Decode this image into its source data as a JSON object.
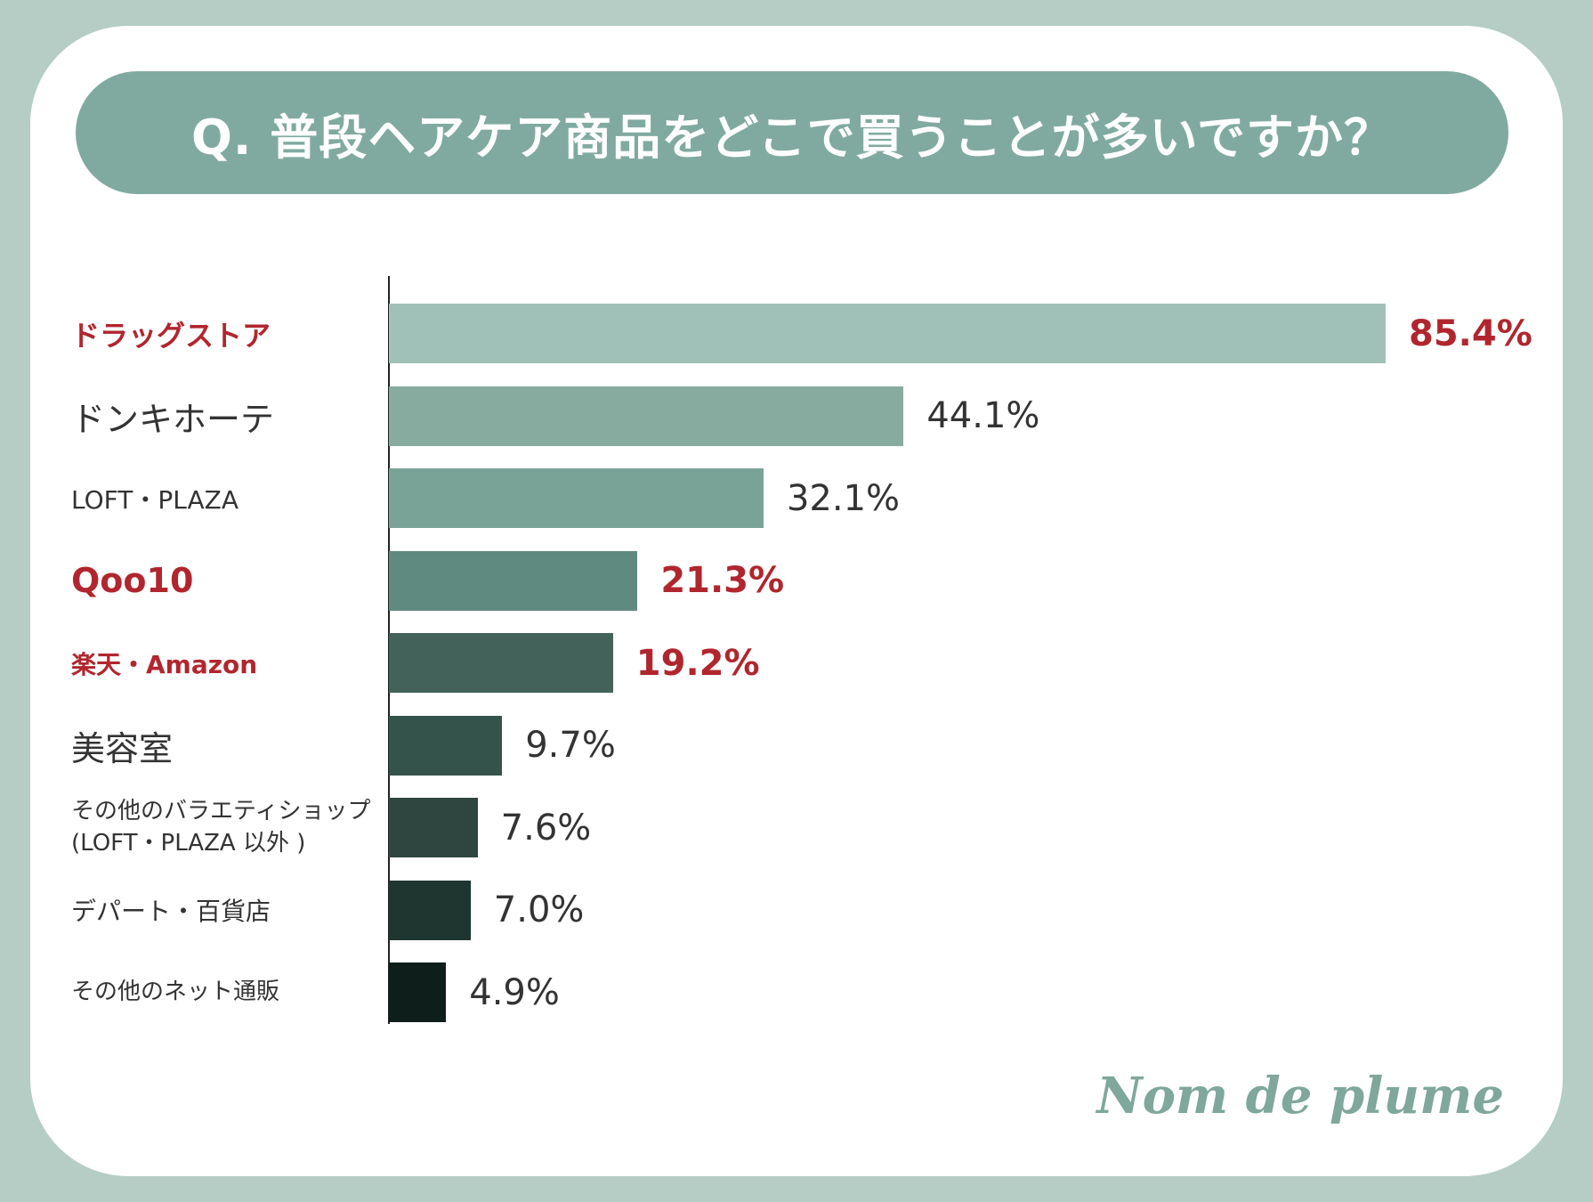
{
  "chart_data": {
    "type": "bar",
    "orientation": "horizontal",
    "title": "Q. 普段ヘアケア商品をどこで買うことが多いですか？",
    "xlim": [
      0,
      85.4
    ],
    "grid": false,
    "categories": [
      "ドラッグストア",
      "ドンキホーテ",
      "LOFT・PLAZA",
      "Qoo10",
      "楽天・Amazon",
      "美容室",
      "その他のバラエティショップ\n(LOFT・PLAZA 以外 )",
      "デパート・百貨店",
      "その他のネット通販"
    ],
    "values": [
      85.4,
      44.1,
      32.1,
      21.3,
      19.2,
      9.7,
      7.6,
      7.0,
      4.9
    ],
    "value_labels": [
      "85.4%",
      "44.1%",
      "32.1%",
      "21.3%",
      "19.2%",
      "9.7%",
      "7.6%",
      "7.0%",
      "4.9%"
    ],
    "highlighted": [
      true,
      false,
      false,
      true,
      true,
      false,
      false,
      false,
      false
    ],
    "bar_colors": [
      "#a0c1b7",
      "#88aba0",
      "#7aa398",
      "#5f8a7f",
      "#42625a",
      "#34534a",
      "#2f4640",
      "#1f3530",
      "#0e1e1a"
    ],
    "highlight_color": "#b1262e"
  },
  "brand": "Nom de plume"
}
